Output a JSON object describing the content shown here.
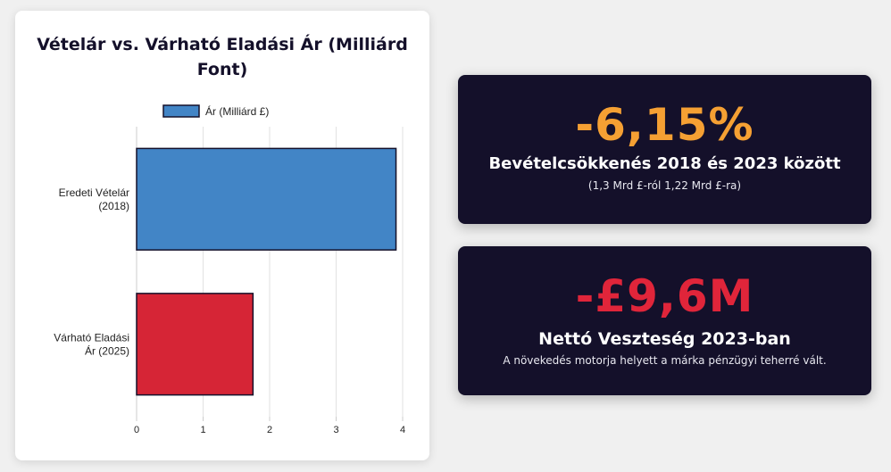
{
  "chart_data": {
    "type": "bar",
    "orientation": "horizontal",
    "title": "Vételár vs. Várható Eladási Ár (Milliárd Font)",
    "categories": [
      [
        "Eredeti Vételár",
        "(2018)"
      ],
      [
        "Várható Eladási",
        "Ár (2025)"
      ]
    ],
    "series": [
      {
        "name": "Ár (Milliárd £)",
        "values": [
          3.9,
          1.75
        ],
        "colors": [
          "#4285c6",
          "#d62536"
        ]
      }
    ],
    "xlim": [
      0,
      4
    ],
    "xticks": [
      "0",
      "1",
      "2",
      "3",
      "4"
    ],
    "grid": true,
    "legend": "top"
  },
  "cards": [
    {
      "big": "-6,15%",
      "title": "Bevételcsökkenés 2018 és 2023 között",
      "subtitle": "(1,3 Mrd £-ról 1,22 Mrd £-ra)",
      "color": "#f5a033"
    },
    {
      "big": "-£9,6M",
      "title": "Nettó Veszteség 2023-ban",
      "subtitle": "A növekedés motorja helyett a márka pénzügyi teherré vált.",
      "color": "#e0253a"
    }
  ]
}
